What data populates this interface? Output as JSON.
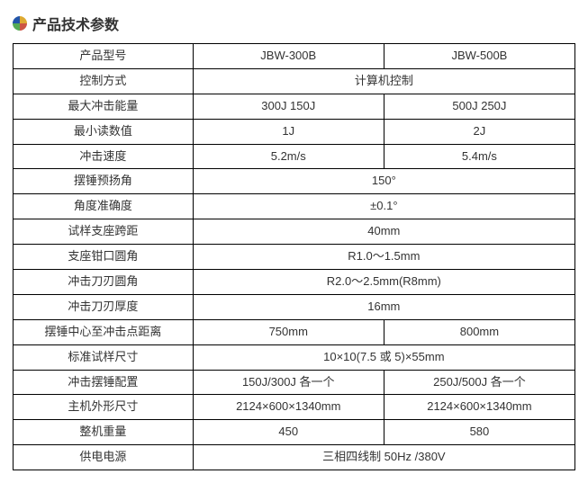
{
  "title": "产品技术参数",
  "icon_colors": {
    "top_left": "#2255aa",
    "top_right": "#ddaa33",
    "bottom_left": "#55aa55",
    "bottom_right": "#cc5544"
  },
  "colors": {
    "background": "#ffffff",
    "text": "#333333",
    "border": "#000000",
    "title_text": "#333333"
  },
  "font_sizes": {
    "title": 16,
    "cell": 13
  },
  "rows": [
    {
      "label": "产品型号",
      "span": false,
      "val1": "JBW-300B",
      "val2": "JBW-500B"
    },
    {
      "label": "控制方式",
      "span": true,
      "val": "计算机控制"
    },
    {
      "label": "最大冲击能量",
      "span": false,
      "val1": "300J 150J",
      "val2": "500J 250J"
    },
    {
      "label": "最小读数值",
      "span": false,
      "val1": "1J",
      "val2": "2J"
    },
    {
      "label": "冲击速度",
      "span": false,
      "val1": "5.2m/s",
      "val2": "5.4m/s"
    },
    {
      "label": "摆锤预扬角",
      "span": true,
      "val": "150°"
    },
    {
      "label": "角度准确度",
      "span": true,
      "val": "±0.1°"
    },
    {
      "label": "试样支座跨距",
      "span": true,
      "val": "40mm"
    },
    {
      "label": "支座钳口圆角",
      "span": true,
      "val": "R1.0～1.5mm"
    },
    {
      "label": "冲击刀刃圆角",
      "span": true,
      "val": "R2.0～2.5mm(R8mm)"
    },
    {
      "label": "冲击刀刃厚度",
      "span": true,
      "val": "16mm"
    },
    {
      "label": "摆锤中心至冲击点距离",
      "span": false,
      "val1": "750mm",
      "val2": "800mm"
    },
    {
      "label": "标准试样尺寸",
      "span": true,
      "val": "10×10(7.5 或 5)×55mm"
    },
    {
      "label": "冲击摆锤配置",
      "span": false,
      "val1": "150J/300J 各一个",
      "val2": "250J/500J 各一个"
    },
    {
      "label": "主机外形尺寸",
      "span": false,
      "val1": "2124×600×1340mm",
      "val2": "2124×600×1340mm"
    },
    {
      "label": "整机重量",
      "span": false,
      "val1": "450",
      "val2": "580"
    },
    {
      "label": "供电电源",
      "span": true,
      "val": "三相四线制 50Hz /380V"
    }
  ]
}
